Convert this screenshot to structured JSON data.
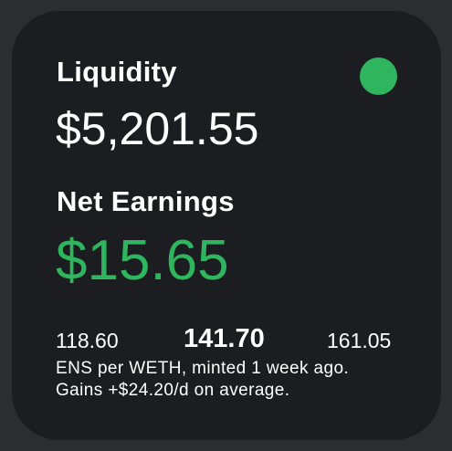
{
  "widget": {
    "status_color": "#2fb55d",
    "liquidity": {
      "label": "Liquidity",
      "value": "$5,201.55"
    },
    "net_earnings": {
      "label": "Net Earnings",
      "value": "$15.65",
      "color": "#2fb55d"
    },
    "price_range": {
      "low": "118.60",
      "current": "141.70",
      "high": "161.05"
    },
    "description": {
      "line1": "ENS per WETH, minted 1 week ago.",
      "line2": "Gains +$24.20/d on average."
    }
  }
}
